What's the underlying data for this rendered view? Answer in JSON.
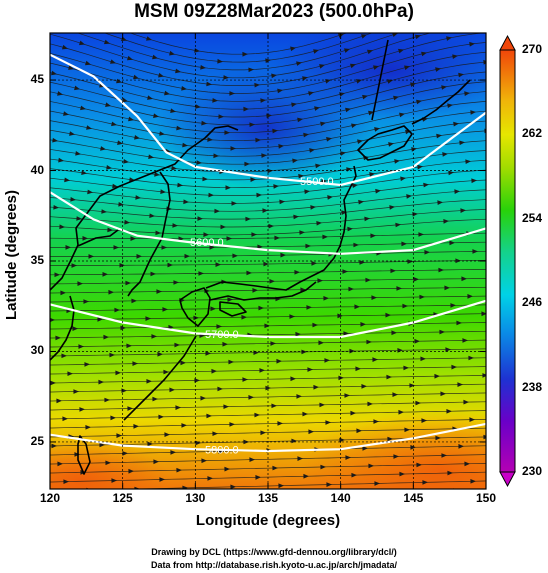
{
  "title": "MSM 09Z28Mar2023 (500.0hPa)",
  "xlabel": "Longitude (degrees)",
  "ylabel": "Latitude  (degrees)",
  "credit_line1": "Drawing by DCL (https://www.gfd-dennou.org/library/dcl/)",
  "credit_line2": "Data from http://database.rish.kyoto-u.ac.jp/arch/jmadata/",
  "colors": {
    "cold": "#1e3cd2",
    "cool": "#00d2e6",
    "mid": "#1ed20a",
    "warm": "#e6e600",
    "hot": "#f06e0a",
    "contour": "#ffffff",
    "coast": "#000000"
  },
  "chart_data": {
    "type": "heatmap",
    "xlim": [
      120,
      150
    ],
    "ylim": [
      22.4,
      47.6
    ],
    "x_ticks": [
      "120",
      "125",
      "130",
      "135",
      "140",
      "145",
      "150"
    ],
    "y_ticks": [
      "25",
      "30",
      "35",
      "40",
      "45"
    ],
    "colorbar": {
      "min": 230,
      "max": 270,
      "ticks": [
        "230",
        "238",
        "246",
        "254",
        "262",
        "270"
      ]
    },
    "contours": [
      {
        "label": "5500.0",
        "points": [
          [
            120,
            46.4
          ],
          [
            123,
            45.2
          ],
          [
            126,
            43.0
          ],
          [
            128,
            41.0
          ],
          [
            130,
            40.2
          ],
          [
            135,
            39.6
          ],
          [
            140,
            39.2
          ],
          [
            145,
            40.2
          ],
          [
            148,
            42.0
          ],
          [
            150,
            43.2
          ]
        ]
      },
      {
        "label": "5600.0",
        "points": [
          [
            120,
            38.8
          ],
          [
            123,
            37.3
          ],
          [
            126,
            36.4
          ],
          [
            130,
            36.0
          ],
          [
            135,
            35.6
          ],
          [
            140,
            35.4
          ],
          [
            145,
            35.6
          ],
          [
            150,
            36.8
          ]
        ]
      },
      {
        "label": "5700.0",
        "points": [
          [
            120,
            32.6
          ],
          [
            125,
            31.6
          ],
          [
            130,
            31.0
          ],
          [
            135,
            30.8
          ],
          [
            140,
            30.8
          ],
          [
            145,
            31.6
          ],
          [
            150,
            32.8
          ]
        ]
      },
      {
        "label": "5800.0",
        "points": [
          [
            120,
            25.4
          ],
          [
            125,
            24.8
          ],
          [
            130,
            24.6
          ],
          [
            135,
            24.5
          ],
          [
            140,
            24.6
          ],
          [
            145,
            25.2
          ],
          [
            150,
            26.0
          ]
        ]
      }
    ]
  }
}
